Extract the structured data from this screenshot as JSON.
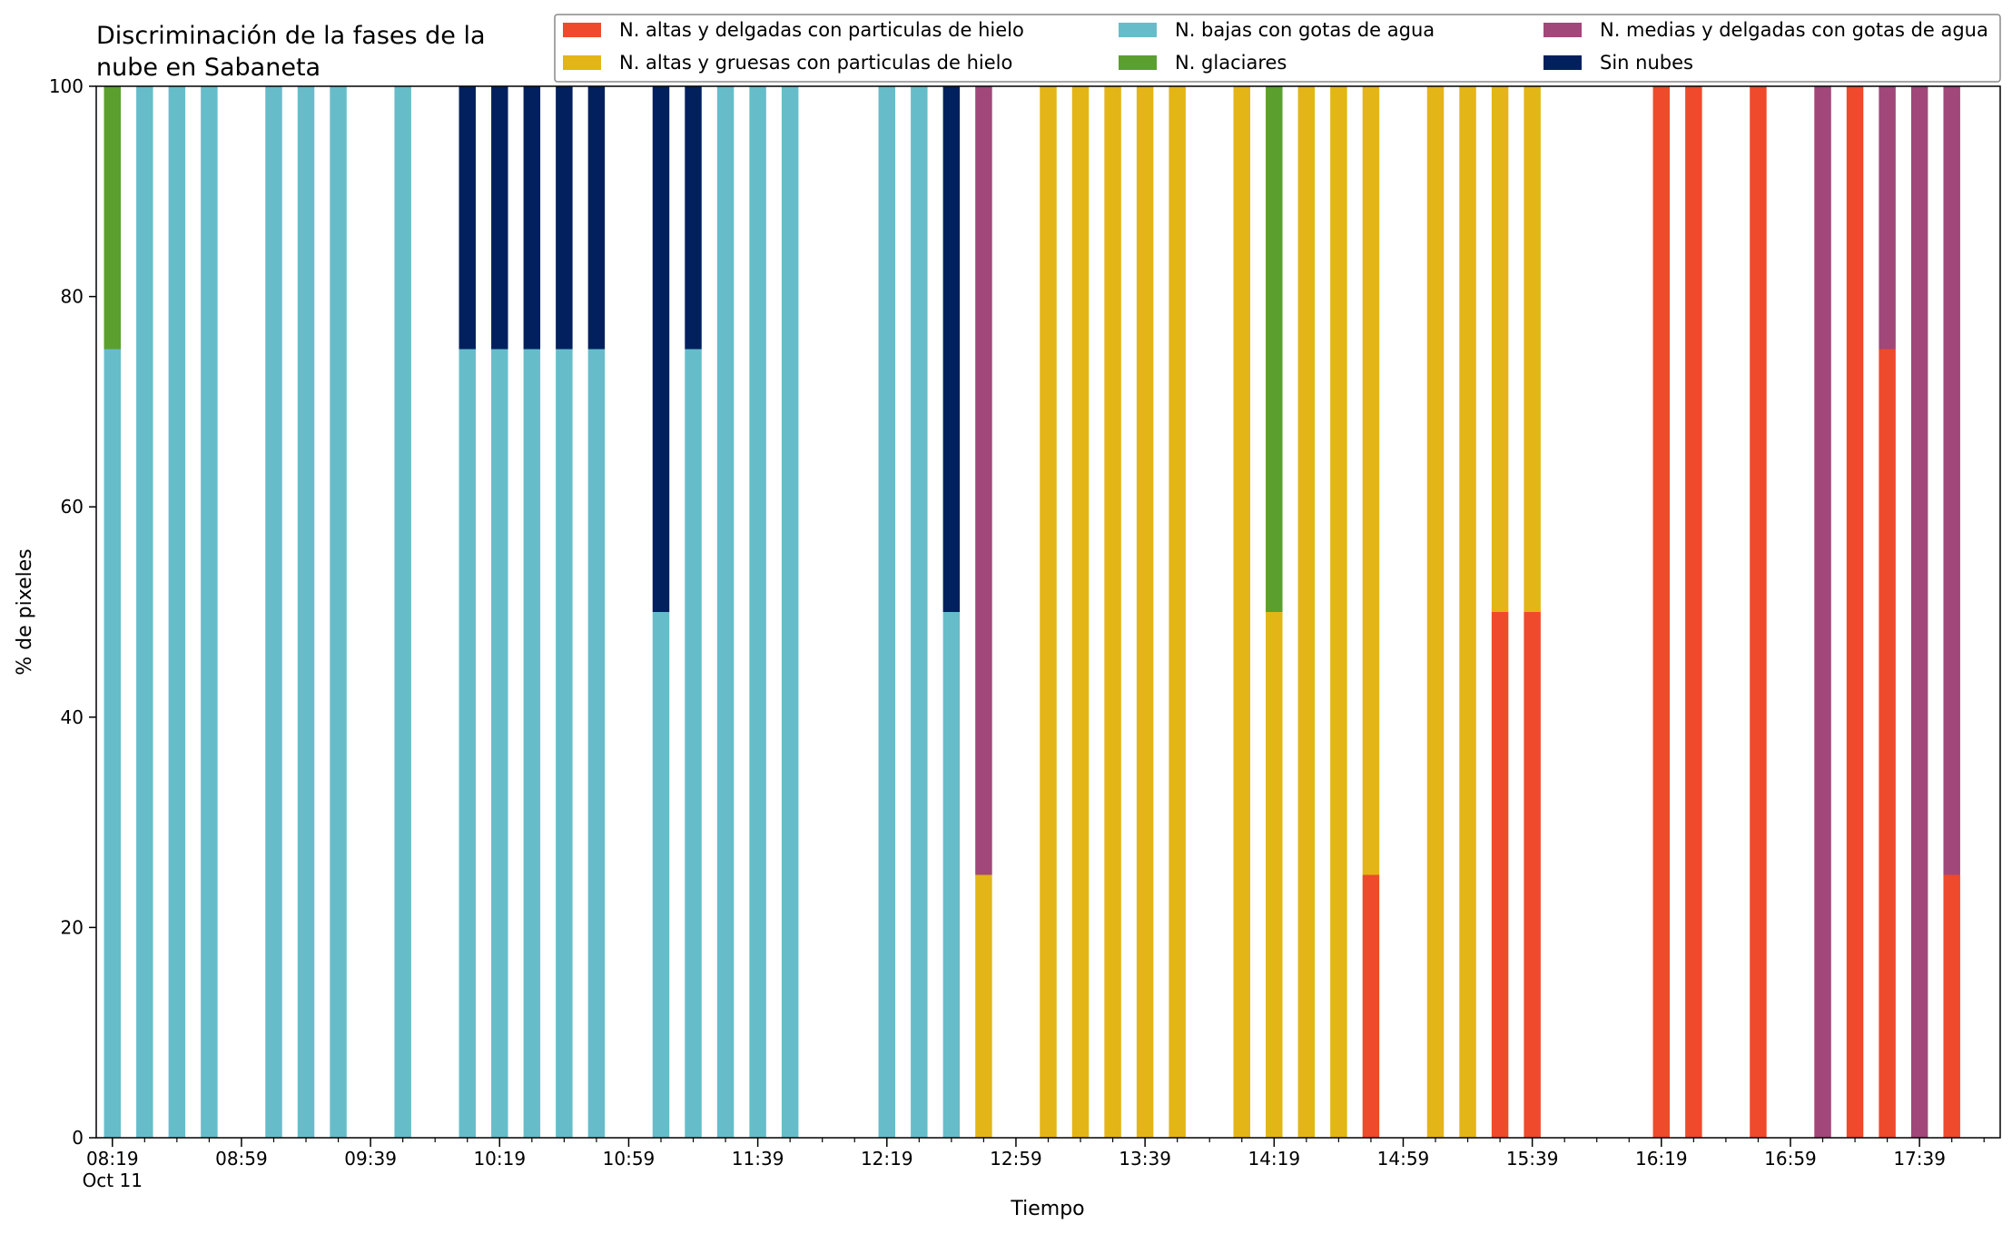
{
  "chart_data": {
    "type": "bar",
    "stacked": true,
    "title": "Discriminación de la fases de la nube en Sabaneta",
    "title_lines": [
      "Discriminación de la fases de la",
      "nube en Sabaneta"
    ],
    "xlabel": "Tiempo",
    "ylabel": "% de pixeles",
    "ylim": [
      0,
      100
    ],
    "yticks": [
      0,
      20,
      40,
      60,
      80,
      100
    ],
    "x_axis_units": "minutes after 08:19 (Oct 11)",
    "xlim": [
      -5,
      585
    ],
    "bar_interval_minutes": 10,
    "tick_labels": [
      {
        "x": 0,
        "label": "08:19",
        "sublabel": "Oct 11"
      },
      {
        "x": 40,
        "label": "08:59"
      },
      {
        "x": 80,
        "label": "09:39"
      },
      {
        "x": 120,
        "label": "10:19"
      },
      {
        "x": 160,
        "label": "10:59"
      },
      {
        "x": 200,
        "label": "11:39"
      },
      {
        "x": 240,
        "label": "12:19"
      },
      {
        "x": 280,
        "label": "12:59"
      },
      {
        "x": 320,
        "label": "13:39"
      },
      {
        "x": 360,
        "label": "14:19"
      },
      {
        "x": 400,
        "label": "14:59"
      },
      {
        "x": 440,
        "label": "15:39"
      },
      {
        "x": 480,
        "label": "16:19"
      },
      {
        "x": 520,
        "label": "16:59"
      },
      {
        "x": 560,
        "label": "17:39"
      }
    ],
    "x": [
      0,
      10,
      20,
      30,
      50,
      60,
      70,
      90,
      110,
      120,
      130,
      140,
      150,
      170,
      180,
      190,
      200,
      210,
      240,
      250,
      260,
      270,
      290,
      300,
      310,
      320,
      330,
      350,
      360,
      370,
      380,
      390,
      410,
      420,
      430,
      440,
      480,
      490,
      510,
      530,
      540,
      550,
      560,
      570
    ],
    "series": [
      {
        "name": "N. altas y delgadas con particulas de hielo",
        "color": "#ee4a2b",
        "values": [
          0,
          0,
          0,
          0,
          0,
          0,
          0,
          0,
          0,
          0,
          0,
          0,
          0,
          0,
          0,
          0,
          0,
          0,
          0,
          0,
          0,
          0,
          0,
          0,
          0,
          0,
          0,
          0,
          0,
          0,
          0,
          25,
          0,
          0,
          50,
          50,
          100,
          100,
          100,
          0,
          100,
          75,
          0,
          25
        ]
      },
      {
        "name": "N. altas y gruesas con particulas de hielo",
        "color": "#e3b516",
        "values": [
          0,
          0,
          0,
          0,
          0,
          0,
          0,
          0,
          0,
          0,
          0,
          0,
          0,
          0,
          0,
          0,
          0,
          0,
          0,
          0,
          0,
          25,
          100,
          100,
          100,
          100,
          100,
          100,
          50,
          100,
          100,
          75,
          100,
          100,
          50,
          50,
          0,
          0,
          0,
          0,
          0,
          0,
          0,
          0
        ]
      },
      {
        "name": "N. bajas con gotas de agua",
        "color": "#66bdc9",
        "values": [
          75,
          100,
          100,
          100,
          100,
          100,
          100,
          100,
          75,
          75,
          75,
          75,
          75,
          50,
          75,
          100,
          100,
          100,
          100,
          100,
          50,
          0,
          0,
          0,
          0,
          0,
          0,
          0,
          0,
          0,
          0,
          0,
          0,
          0,
          0,
          0,
          0,
          0,
          0,
          0,
          0,
          0,
          0,
          0
        ]
      },
      {
        "name": "N. glaciares",
        "color": "#5b9f2f",
        "values": [
          25,
          0,
          0,
          0,
          0,
          0,
          0,
          0,
          0,
          0,
          0,
          0,
          0,
          0,
          0,
          0,
          0,
          0,
          0,
          0,
          0,
          0,
          0,
          0,
          0,
          0,
          0,
          0,
          50,
          0,
          0,
          0,
          0,
          0,
          0,
          0,
          0,
          0,
          0,
          0,
          0,
          0,
          0,
          0
        ]
      },
      {
        "name": "N. medias y delgadas con gotas de agua",
        "color": "#a1477a",
        "values": [
          0,
          0,
          0,
          0,
          0,
          0,
          0,
          0,
          0,
          0,
          0,
          0,
          0,
          0,
          0,
          0,
          0,
          0,
          0,
          0,
          0,
          75,
          0,
          0,
          0,
          0,
          0,
          0,
          0,
          0,
          0,
          0,
          0,
          0,
          0,
          0,
          0,
          0,
          0,
          100,
          0,
          25,
          100,
          75
        ]
      },
      {
        "name": "Sin nubes",
        "color": "#03205e",
        "values": [
          0,
          0,
          0,
          0,
          0,
          0,
          0,
          0,
          25,
          25,
          25,
          25,
          25,
          50,
          25,
          0,
          0,
          0,
          0,
          0,
          50,
          0,
          0,
          0,
          0,
          0,
          0,
          0,
          0,
          0,
          0,
          0,
          0,
          0,
          0,
          0,
          0,
          0,
          0,
          0,
          0,
          0,
          0,
          0
        ]
      }
    ],
    "legend": {
      "placement": "top-right",
      "columns": 3,
      "entries": [
        {
          "label": "N. altas y delgadas con particulas de hielo",
          "color": "#ee4a2b"
        },
        {
          "label": "N. altas y gruesas con particulas de hielo",
          "color": "#e3b516"
        },
        {
          "label": "N. bajas con gotas de agua",
          "color": "#66bdc9"
        },
        {
          "label": "N. glaciares",
          "color": "#5b9f2f"
        },
        {
          "label": "N. medias y delgadas con gotas de agua",
          "color": "#a1477a"
        },
        {
          "label": "Sin nubes",
          "color": "#03205e"
        }
      ]
    },
    "grid": false
  }
}
